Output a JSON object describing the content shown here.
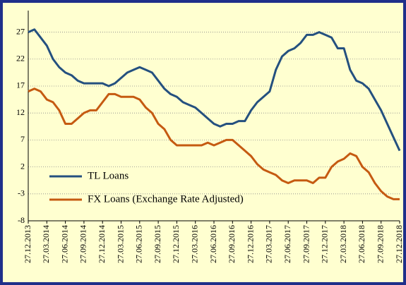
{
  "chart_data": {
    "type": "line",
    "categories": [
      "27.12.2013",
      null,
      null,
      "27.03.2014",
      null,
      null,
      "27.06.2014",
      null,
      null,
      "27.09.2014",
      null,
      null,
      "27.12.2014",
      null,
      null,
      "27.03.2015",
      null,
      null,
      "27.06.2015",
      null,
      null,
      "27.09.2015",
      null,
      null,
      "27.12.2015",
      null,
      null,
      "27.03.2016",
      null,
      null,
      "27.06.2016",
      null,
      null,
      "27.09.2016",
      null,
      null,
      "27.12.2016",
      null,
      null,
      "27.03.2017",
      null,
      null,
      "27.06.2017",
      null,
      null,
      "27.09.2017",
      null,
      null,
      "27.12.2017",
      null,
      null,
      "27.03.2018",
      null,
      null,
      "27.06.2018",
      null,
      null,
      "27.09.2018",
      null,
      null,
      "27.12.2018"
    ],
    "series": [
      {
        "name": "TL Loans",
        "color": "#24507f",
        "values": [
          27,
          27.5,
          26,
          24.5,
          22,
          20.5,
          19.5,
          19,
          18,
          17.5,
          17.5,
          17.5,
          17.5,
          17,
          17.5,
          18.5,
          19.5,
          20,
          20.5,
          20,
          19.5,
          18,
          16.5,
          15.5,
          15,
          14,
          13.5,
          13,
          12,
          11,
          10,
          9.5,
          10,
          10,
          10.5,
          10.5,
          12.5,
          14,
          15,
          16,
          20,
          22.5,
          23.5,
          24,
          25,
          26.5,
          26.5,
          27,
          26.5,
          26,
          24,
          24,
          20,
          18,
          17.5,
          16.5,
          14.5,
          12.5,
          10,
          7.5,
          5
        ]
      },
      {
        "name": "FX Loans (Exchange Rate Adjusted)",
        "color": "#c55a11",
        "values": [
          16,
          16.5,
          16,
          14.5,
          14,
          12.5,
          10,
          10,
          11,
          12,
          12.5,
          12.5,
          14,
          15.5,
          15.5,
          15,
          15,
          15,
          14.5,
          13,
          12,
          10,
          9,
          7,
          6,
          6,
          6,
          6,
          6,
          6.5,
          6,
          6.5,
          7,
          7,
          6,
          5,
          4,
          2.5,
          1.5,
          1,
          0.5,
          -0.5,
          -1,
          -0.5,
          -0.5,
          -0.5,
          -1,
          0,
          0,
          2,
          3,
          3.5,
          4.5,
          4,
          2,
          1,
          -1,
          -2.5,
          -3.5,
          -4,
          -4
        ]
      }
    ],
    "ylim": [
      -8,
      31
    ],
    "yticks": [
      -8,
      -3,
      2,
      7,
      12,
      17,
      22,
      27
    ],
    "grid": true
  }
}
